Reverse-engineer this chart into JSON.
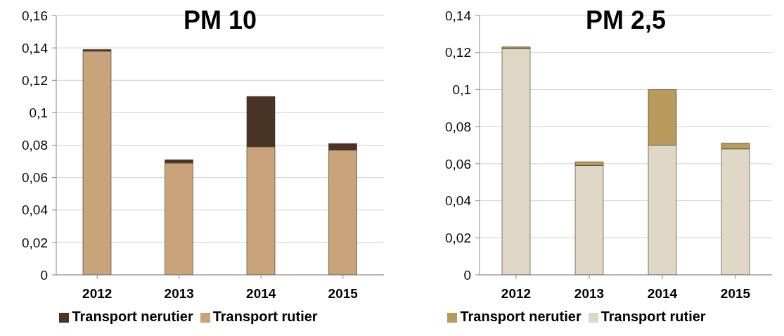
{
  "chart_data": [
    {
      "type": "bar",
      "title": "PM 10",
      "categories": [
        "2012",
        "2013",
        "2014",
        "2015"
      ],
      "stacked": true,
      "ylim": [
        0,
        0.16
      ],
      "yticks": [
        {
          "value": 0,
          "label": "0"
        },
        {
          "value": 0.02,
          "label": "0,02"
        },
        {
          "value": 0.04,
          "label": "0,04"
        },
        {
          "value": 0.06,
          "label": "0,06"
        },
        {
          "value": 0.08,
          "label": "0,08"
        },
        {
          "value": 0.1,
          "label": "0,1"
        },
        {
          "value": 0.12,
          "label": "0,12"
        },
        {
          "value": 0.14,
          "label": "0,14"
        },
        {
          "value": 0.16,
          "label": "0,16"
        }
      ],
      "grid": "y",
      "legend": "bottom",
      "series": [
        {
          "name": "Transport rutier",
          "color": "#c9a47a",
          "values": [
            0.138,
            0.069,
            0.079,
            0.077
          ]
        },
        {
          "name": "Transport nerutier",
          "color": "#4a3426",
          "values": [
            0.001,
            0.002,
            0.031,
            0.004
          ]
        }
      ]
    },
    {
      "type": "bar",
      "title": "PM 2,5",
      "categories": [
        "2012",
        "2013",
        "2014",
        "2015"
      ],
      "stacked": true,
      "ylim": [
        0,
        0.14
      ],
      "yticks": [
        {
          "value": 0,
          "label": "0"
        },
        {
          "value": 0.02,
          "label": "0,02"
        },
        {
          "value": 0.04,
          "label": "0,04"
        },
        {
          "value": 0.06,
          "label": "0,06"
        },
        {
          "value": 0.08,
          "label": "0,08"
        },
        {
          "value": 0.1,
          "label": "0,1"
        },
        {
          "value": 0.12,
          "label": "0,12"
        },
        {
          "value": 0.14,
          "label": "0,14"
        }
      ],
      "grid": "y",
      "legend": "bottom",
      "series": [
        {
          "name": "Transport rutier",
          "color": "#e0d8c6",
          "values": [
            0.122,
            0.059,
            0.07,
            0.068
          ]
        },
        {
          "name": "Transport nerutier",
          "color": "#b89a5c",
          "values": [
            0.001,
            0.002,
            0.03,
            0.003
          ]
        }
      ]
    }
  ]
}
